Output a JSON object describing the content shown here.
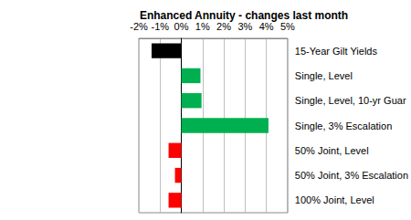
{
  "chart_data": {
    "type": "bar",
    "orientation": "horizontal",
    "title": "Enhanced Annuity - changes last month",
    "categories": [
      "15-Year Gilt Yields",
      "Single, Level",
      "Single, Level, 10-yr Guar",
      "Single, 3% Escalation",
      "50% Joint, Level",
      "50% Joint, 3% Escalation",
      "100% Joint, Level"
    ],
    "values": [
      -1.4,
      0.9,
      0.95,
      4.1,
      -0.6,
      -0.3,
      -0.6
    ],
    "colors": [
      "#000000",
      "#00b050",
      "#00b050",
      "#00b050",
      "#ff0000",
      "#ff0000",
      "#ff0000"
    ],
    "xlim": [
      -2,
      5
    ],
    "xticks": [
      {
        "value": -2,
        "label": "-2%"
      },
      {
        "value": -1,
        "label": "-1%"
      },
      {
        "value": 0,
        "label": "0%"
      },
      {
        "value": 1,
        "label": "1%"
      },
      {
        "value": 2,
        "label": "2%"
      },
      {
        "value": 3,
        "label": "3%"
      },
      {
        "value": 4,
        "label": "4%"
      },
      {
        "value": 5,
        "label": "5%"
      }
    ],
    "grid": true
  }
}
